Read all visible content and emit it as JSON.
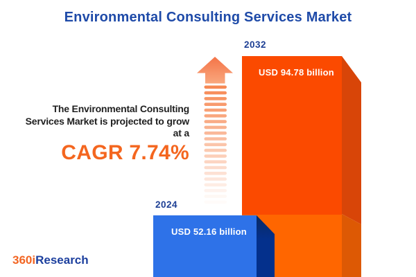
{
  "title": "Environmental Consulting Services Market",
  "growth_note": {
    "lines": [
      "The Environmental Consulting",
      "Services Market is projected to grow",
      "at a"
    ],
    "cagr": "CAGR 7.74%"
  },
  "bars": {
    "y2024": {
      "year": "2024",
      "value": "USD 52.16 billion"
    },
    "y2032": {
      "year": "2032",
      "value": "USD 94.78 billion"
    }
  },
  "logo": {
    "prefix": "360i",
    "suffix": "Research"
  },
  "icons": {
    "growth_arrow": "upward-fading-striped-arrow"
  },
  "colors": {
    "title_blue": "#1E4AA8",
    "year_label_blue": "#1D3F94",
    "note_text": "#1F1F1F",
    "cagr_orange": "#F4661F",
    "bar_2032_front_top": "#FB4A00",
    "bar_2032_front_bottom": "#FF6600",
    "bar_2032_side_top": "#D84508",
    "bar_2032_side_bottom": "#DD5904",
    "bar_2024_front": "#2E72E8",
    "bar_2024_side": "#04308C",
    "arrow_orange": "#F6834B",
    "value_text": "#FFFFFF",
    "logo_orange": "#F26522",
    "logo_blue": "#1C3F9E",
    "background": "#FFFFFF"
  },
  "chart_data": {
    "type": "bar",
    "orientation": "vertical",
    "style": "3d-infographic",
    "categories": [
      "2024",
      "2032"
    ],
    "series": [
      {
        "name": "Market size (USD billion)",
        "values": [
          52.16,
          94.78
        ]
      }
    ],
    "unit": "USD billion",
    "value_labels": [
      "USD 52.16 billion",
      "USD 94.78 billion"
    ],
    "cagr_percent": 7.74,
    "title": "Environmental Consulting Services Market",
    "annotations": [
      "The Environmental Consulting Services Market is projected to grow at a CAGR 7.74%"
    ],
    "legend": false,
    "axes_visible": false,
    "gridlines": false
  }
}
